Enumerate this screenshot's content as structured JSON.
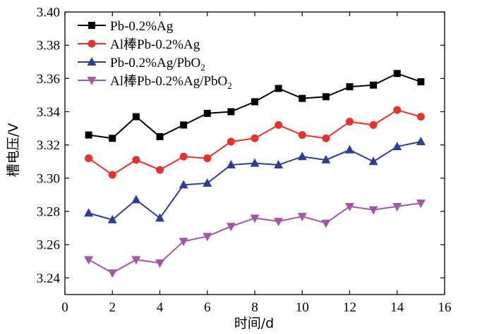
{
  "chart_data": {
    "type": "line",
    "title": "",
    "xlabel": "时间/d",
    "ylabel": "槽电压/V",
    "xlim": [
      0,
      16
    ],
    "ylim": [
      3.23,
      3.4
    ],
    "xticks": [
      "0",
      "2",
      "4",
      "6",
      "8",
      "10",
      "12",
      "14",
      "16"
    ],
    "yticks": [
      "3.24",
      "3.26",
      "3.28",
      "3.30",
      "3.32",
      "3.34",
      "3.36",
      "3.38",
      "3.40"
    ],
    "grid": false,
    "legend_position": "top-left",
    "x": [
      1,
      2,
      3,
      4,
      5,
      6,
      7,
      8,
      9,
      10,
      11,
      12,
      13,
      14,
      15
    ],
    "series": [
      {
        "name": "Pb-0.2%Ag",
        "name_main": "Pb-0.2%Ag",
        "name_sub": "",
        "name_tail": "",
        "color": "#000000",
        "marker": "square",
        "values": [
          3.326,
          3.324,
          3.337,
          3.325,
          3.332,
          3.339,
          3.34,
          3.346,
          3.354,
          3.348,
          3.349,
          3.355,
          3.356,
          3.363,
          3.358
        ]
      },
      {
        "name": "Al棒Pb-0.2%Ag",
        "name_main": "Al棒Pb-0.2%Ag",
        "name_sub": "",
        "name_tail": "",
        "color": "#e8302d",
        "marker": "circle",
        "values": [
          3.312,
          3.302,
          3.311,
          3.305,
          3.313,
          3.312,
          3.322,
          3.324,
          3.332,
          3.326,
          3.324,
          3.334,
          3.332,
          3.341,
          3.337
        ]
      },
      {
        "name": "Pb-0.2%Ag/PbO2",
        "name_main": "Pb-0.2%Ag/PbO",
        "name_sub": "2",
        "name_tail": "",
        "color": "#2e3e92",
        "marker": "triangle-up",
        "values": [
          3.279,
          3.275,
          3.287,
          3.276,
          3.296,
          3.297,
          3.308,
          3.309,
          3.308,
          3.313,
          3.311,
          3.317,
          3.31,
          3.319,
          3.322
        ]
      },
      {
        "name": "Al棒Pb-0.2%Ag/PbO2",
        "name_main": "Al棒Pb-0.2%Ag/PbO",
        "name_sub": "2",
        "name_tail": "",
        "color": "#a457a4",
        "marker": "triangle-down",
        "values": [
          3.251,
          3.243,
          3.251,
          3.249,
          3.262,
          3.265,
          3.271,
          3.276,
          3.274,
          3.277,
          3.273,
          3.283,
          3.281,
          3.283,
          3.285
        ]
      }
    ]
  }
}
